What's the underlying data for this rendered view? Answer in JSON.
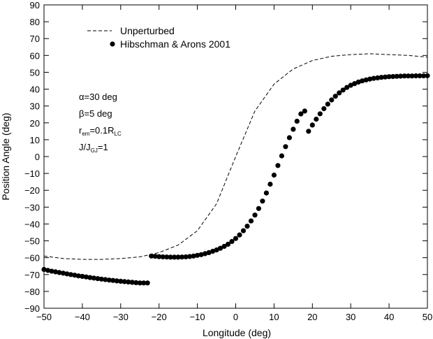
{
  "chart_data": {
    "type": "scatter",
    "xlabel": "Longitude (deg)",
    "ylabel": "Position Angle (deg)",
    "xlim": [
      -50,
      50
    ],
    "ylim": [
      -90,
      90
    ],
    "x_ticks": [
      -50,
      -40,
      -30,
      -20,
      -10,
      0,
      10,
      20,
      30,
      40,
      50
    ],
    "y_ticks": [
      -90,
      -80,
      -70,
      -60,
      -50,
      -40,
      -30,
      -20,
      -10,
      0,
      10,
      20,
      30,
      40,
      50,
      60,
      70,
      80,
      90
    ],
    "grid": false,
    "legend_position": "top-left",
    "annotations": {
      "alpha": {
        "symbol": "α",
        "text": "=30 deg"
      },
      "beta": {
        "symbol": "β",
        "text": "=5 deg"
      },
      "rem": {
        "base": "r",
        "sub": "em",
        "mid": "=0.1R",
        "sub2": "LC"
      },
      "jratio": {
        "base": "J/J",
        "sub": "GJ",
        "tail": "=1"
      }
    },
    "series": [
      {
        "name": "Unperturbed",
        "style": "dashed-line",
        "x": [
          -50,
          -45,
          -40,
          -35,
          -30,
          -25,
          -20,
          -15,
          -10,
          -5,
          0,
          5,
          10,
          15,
          20,
          25,
          30,
          35,
          40,
          45,
          50
        ],
        "y": [
          -59,
          -60.5,
          -61,
          -61,
          -60.5,
          -59.5,
          -57,
          -52.5,
          -44,
          -28,
          0,
          27,
          43,
          52,
          57,
          59.5,
          60.5,
          61,
          60.5,
          60,
          59
        ]
      },
      {
        "name": "Hibschman & Arons 2001",
        "style": "dots",
        "x": [
          -50,
          -49,
          -48,
          -47,
          -46,
          -45,
          -44,
          -43,
          -42,
          -41,
          -40,
          -39,
          -38,
          -37,
          -36,
          -35,
          -34,
          -33,
          -32,
          -31,
          -30,
          -29,
          -28,
          -27,
          -26,
          -25,
          -24,
          -23,
          -22,
          -21,
          -20,
          -19,
          -18,
          -17,
          -16,
          -15,
          -14,
          -13,
          -12,
          -11,
          -10,
          -9,
          -8,
          -7,
          -6,
          -5,
          -4,
          -3,
          -2,
          -1,
          0,
          1,
          2,
          3,
          4,
          5,
          6,
          7,
          8,
          9,
          10,
          11,
          12,
          13,
          14,
          15,
          16,
          17,
          18,
          19,
          20,
          21,
          22,
          23,
          24,
          25,
          26,
          27,
          28,
          29,
          30,
          31,
          32,
          33,
          34,
          35,
          36,
          37,
          38,
          39,
          40,
          41,
          42,
          43,
          44,
          45,
          46,
          47,
          48,
          49,
          50
        ],
        "y": [
          -67,
          -67.5,
          -68,
          -68.4,
          -68.8,
          -69.2,
          -69.6,
          -70,
          -70.4,
          -70.8,
          -71.1,
          -71.4,
          -71.8,
          -72.1,
          -72.4,
          -72.7,
          -73,
          -73.3,
          -73.5,
          -73.8,
          -74,
          -74.2,
          -74.4,
          -74.6,
          -74.8,
          -75,
          -75,
          -75,
          -59,
          -59.2,
          -59.4,
          -59.5,
          -59.6,
          -59.7,
          -59.7,
          -59.7,
          -59.6,
          -59.5,
          -59.3,
          -59,
          -58.6,
          -58.2,
          -57.6,
          -57,
          -56.2,
          -55.4,
          -54.4,
          -53.3,
          -52,
          -50.4,
          -48.6,
          -46.5,
          -44,
          -41.3,
          -38.2,
          -34.7,
          -30.8,
          -26.4,
          -21.6,
          -16.4,
          -11,
          -5.3,
          0.4,
          5.9,
          11.2,
          16.2,
          21,
          25.3,
          27,
          15,
          18.7,
          22.2,
          25.4,
          28.4,
          31.1,
          33.6,
          35.8,
          37.8,
          39.5,
          41,
          42.3,
          43.3,
          44.2,
          44.9,
          45.5,
          46,
          46.4,
          46.7,
          47,
          47.2,
          47.4,
          47.5,
          47.6,
          47.7,
          47.8,
          47.8,
          47.8,
          47.9,
          47.9,
          47.9,
          48
        ]
      }
    ]
  }
}
